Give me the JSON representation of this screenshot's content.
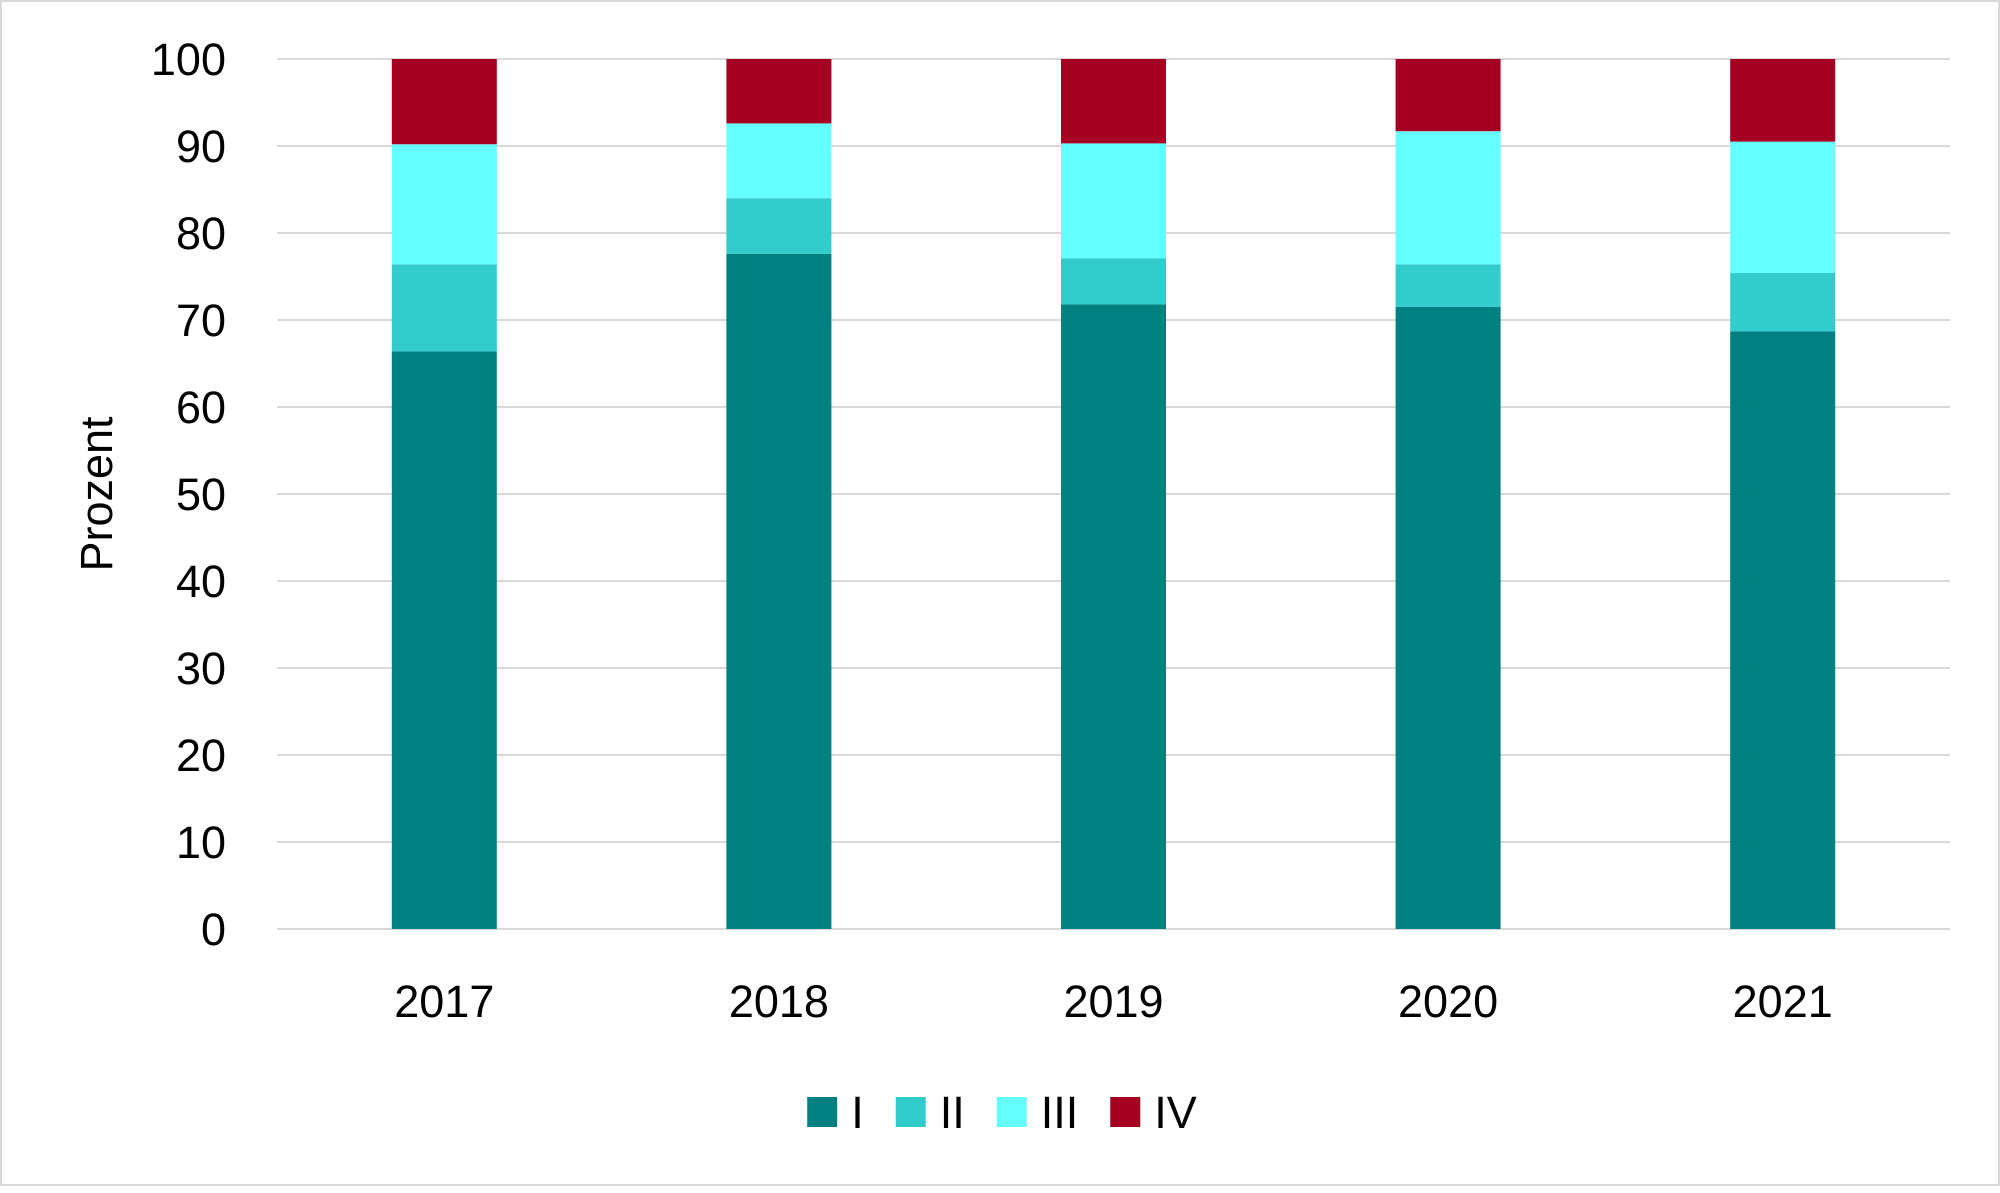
{
  "chart_data": {
    "type": "bar",
    "stacked": true,
    "title": "",
    "xlabel": "",
    "ylabel": "Prozent",
    "ylim": [
      0,
      100
    ],
    "yticks": [
      0,
      10,
      20,
      30,
      40,
      50,
      60,
      70,
      80,
      90,
      100
    ],
    "grid": true,
    "legend_position": "bottom",
    "categories": [
      "2017",
      "2018",
      "2019",
      "2020",
      "2021"
    ],
    "series": [
      {
        "name": "I",
        "color": "#008080",
        "values": [
          66.4,
          77.6,
          71.8,
          71.5,
          68.7
        ]
      },
      {
        "name": "II",
        "color": "#33CCCC",
        "values": [
          10.0,
          6.4,
          5.3,
          4.9,
          6.7
        ]
      },
      {
        "name": "III",
        "color": "#66FFFF",
        "values": [
          13.8,
          8.6,
          13.2,
          15.3,
          15.1
        ]
      },
      {
        "name": "IV",
        "color": "#A50021",
        "values": [
          9.8,
          7.4,
          9.7,
          8.3,
          9.5
        ]
      }
    ]
  }
}
